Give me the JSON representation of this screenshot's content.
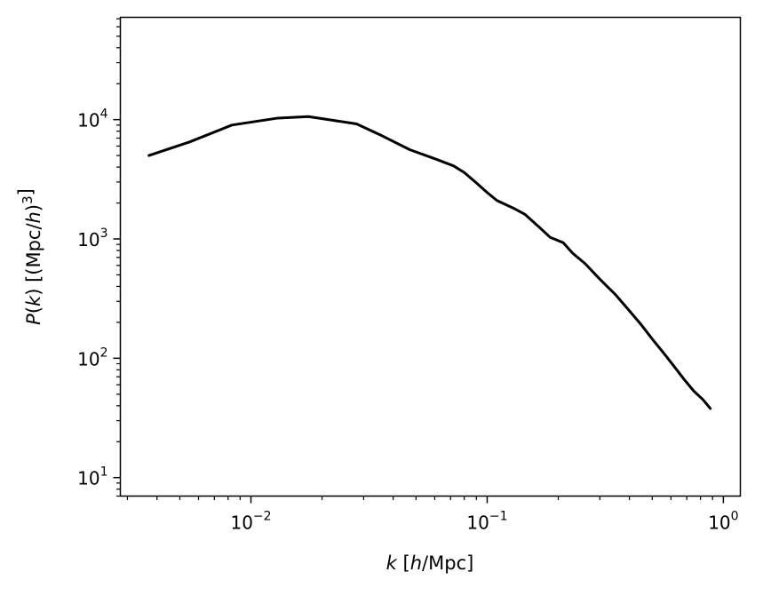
{
  "chart_data": {
    "type": "line",
    "title": "",
    "xlabel": "k [h/Mpc]",
    "ylabel": "P(k) [(Mpc/h)^3]",
    "xscale": "log",
    "yscale": "log",
    "xlim": [
      0.0028,
      1.18
    ],
    "ylim": [
      7.0,
      72000
    ],
    "grid": false,
    "legend": "none",
    "line_color": "#000000",
    "x_ticks": [
      {
        "value": 0.01,
        "base": "10",
        "exp": "−2"
      },
      {
        "value": 0.1,
        "base": "10",
        "exp": "−1"
      },
      {
        "value": 1,
        "base": "10",
        "exp": "0"
      }
    ],
    "y_ticks": [
      {
        "value": 10,
        "base": "10",
        "exp": "1"
      },
      {
        "value": 100,
        "base": "10",
        "exp": "2"
      },
      {
        "value": 1000,
        "base": "10",
        "exp": "3"
      },
      {
        "value": 10000,
        "base": "10",
        "exp": "4"
      }
    ],
    "series": [
      {
        "x": [
          0.0037,
          0.0055,
          0.0083,
          0.013,
          0.0175,
          0.022,
          0.028,
          0.036,
          0.047,
          0.06,
          0.072,
          0.08,
          0.09,
          0.1,
          0.11,
          0.13,
          0.145,
          0.165,
          0.185,
          0.21,
          0.23,
          0.26,
          0.3,
          0.35,
          0.4,
          0.45,
          0.5,
          0.56,
          0.62,
          0.68,
          0.75,
          0.82,
          0.88
        ],
        "y": [
          5000,
          6500,
          9000,
          10300,
          10600,
          9900,
          9200,
          7300,
          5600,
          4700,
          4100,
          3600,
          2950,
          2450,
          2100,
          1800,
          1600,
          1270,
          1030,
          930,
          760,
          620,
          460,
          340,
          250,
          190,
          145,
          110,
          85,
          67,
          53,
          45,
          38
        ]
      }
    ]
  }
}
